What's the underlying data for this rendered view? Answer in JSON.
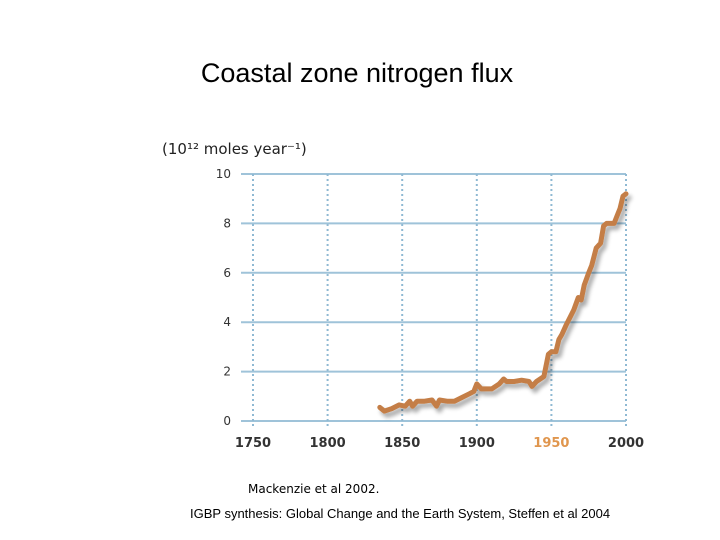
{
  "slide": {
    "title": "Coastal zone nitrogen flux",
    "citation_primary": "Mackenzie et al 2002.",
    "citation_secondary": "IGBP synthesis: Global Change and the Earth System, Steffen et al 2004"
  },
  "chart_data": {
    "type": "line",
    "title": "",
    "xlabel": "",
    "ylabel": "(10¹² moles year⁻¹)",
    "xlim": [
      1750,
      2000
    ],
    "ylim": [
      0,
      10
    ],
    "x_ticks": [
      1750,
      1800,
      1850,
      1900,
      1950,
      2000
    ],
    "y_ticks": [
      0,
      2,
      4,
      6,
      8,
      10
    ],
    "highlight_tick": 1950,
    "grid": "both, dotted vertical and solid horizontal",
    "series": [
      {
        "name": "Coastal zone nitrogen flux",
        "color": "#c47e46",
        "x": [
          1835,
          1838,
          1843,
          1848,
          1852,
          1855,
          1857,
          1860,
          1865,
          1870,
          1873,
          1875,
          1880,
          1885,
          1890,
          1895,
          1898,
          1900,
          1903,
          1907,
          1910,
          1915,
          1918,
          1920,
          1925,
          1930,
          1935,
          1937,
          1940,
          1945,
          1948,
          1950,
          1953,
          1955,
          1957,
          1960,
          1965,
          1968,
          1970,
          1972,
          1975,
          1977,
          1980,
          1983,
          1985,
          1987,
          1990,
          1992,
          1994,
          1996,
          1998,
          2000
        ],
        "values": [
          0.55,
          0.4,
          0.5,
          0.65,
          0.6,
          0.8,
          0.6,
          0.8,
          0.8,
          0.85,
          0.6,
          0.85,
          0.8,
          0.8,
          0.95,
          1.1,
          1.2,
          1.5,
          1.3,
          1.3,
          1.3,
          1.5,
          1.7,
          1.6,
          1.6,
          1.65,
          1.6,
          1.4,
          1.6,
          1.8,
          2.7,
          2.8,
          2.8,
          3.3,
          3.5,
          3.9,
          4.5,
          5.0,
          4.9,
          5.5,
          6.0,
          6.3,
          7.0,
          7.2,
          7.9,
          8.0,
          8.0,
          8.0,
          8.3,
          8.6,
          9.1,
          9.2
        ]
      }
    ]
  }
}
